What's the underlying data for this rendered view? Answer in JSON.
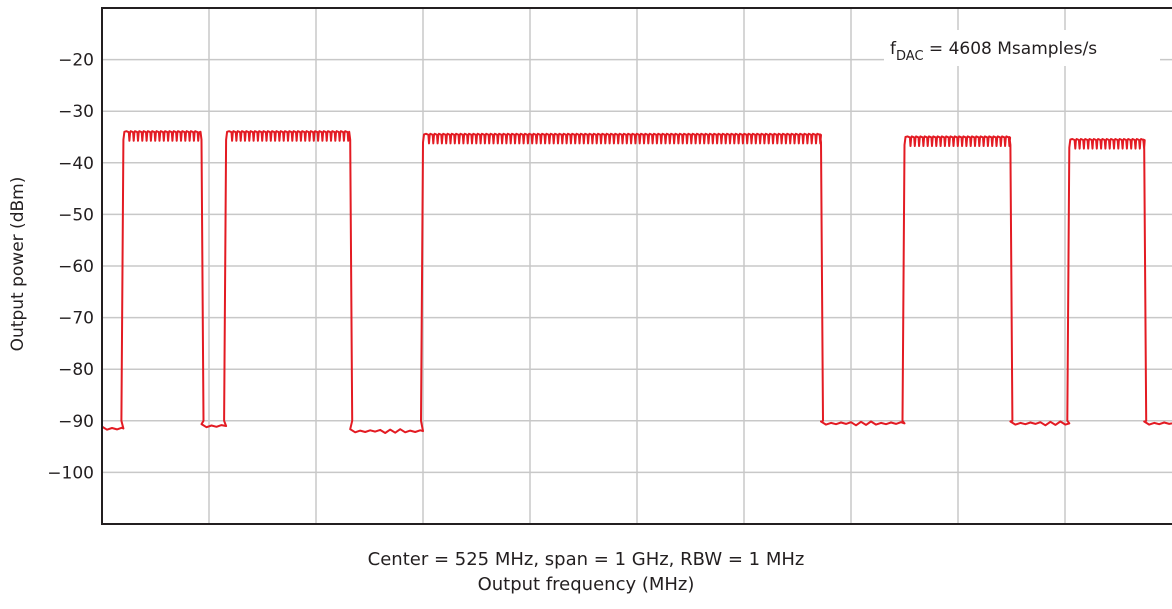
{
  "chart_data": {
    "type": "line",
    "title": "",
    "annotation": {
      "f_symbol": "f",
      "f_subscript": "DAC",
      "text": " = 4608 Msamples/s"
    },
    "ylabel": "Output power (dBm)",
    "xlabel": "Output frequency (MHz)",
    "subtitle": "Center = 525 MHz, span = 1 GHz, RBW = 1 MHz",
    "x_range": [
      25,
      1025
    ],
    "ylim": [
      -110,
      -10
    ],
    "y_ticks": [
      -20,
      -30,
      -40,
      -50,
      -60,
      -70,
      -80,
      -90,
      -100
    ],
    "y_tick_labels": [
      "−20",
      "−30",
      "−40",
      "−50",
      "−60",
      "−70",
      "−80",
      "−90",
      "−100"
    ],
    "x_tick_labels": [],
    "grid": true,
    "line_color": "#e31b23",
    "series": [
      {
        "name": "",
        "noise_floor_dBm": -91.5,
        "bands": [
          {
            "start_mhz": 45,
            "end_mhz": 118,
            "level_dBm": -34
          },
          {
            "start_mhz": 141,
            "end_mhz": 257,
            "level_dBm": -34
          },
          {
            "start_mhz": 325,
            "end_mhz": 697,
            "level_dBm": -34.5
          },
          {
            "start_mhz": 775,
            "end_mhz": 874,
            "level_dBm": -35
          },
          {
            "start_mhz": 929,
            "end_mhz": 999,
            "level_dBm": -35.5
          }
        ],
        "floor_segments": [
          {
            "start_mhz": 25,
            "end_mhz": 45,
            "level_dBm": -91.5
          },
          {
            "start_mhz": 118,
            "end_mhz": 141,
            "level_dBm": -91
          },
          {
            "start_mhz": 257,
            "end_mhz": 325,
            "level_dBm": -92
          },
          {
            "start_mhz": 697,
            "end_mhz": 775,
            "level_dBm": -90.5
          },
          {
            "start_mhz": 874,
            "end_mhz": 929,
            "level_dBm": -90.5
          },
          {
            "start_mhz": 999,
            "end_mhz": 1025,
            "level_dBm": -90.5
          }
        ]
      }
    ]
  }
}
